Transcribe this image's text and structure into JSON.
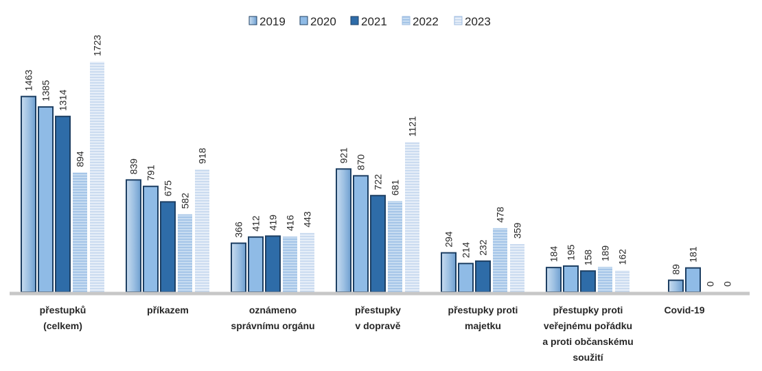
{
  "chart_data": {
    "type": "bar",
    "categories": [
      [
        "přestupků",
        "(celkem)"
      ],
      [
        "příkazem"
      ],
      [
        "oznámeno",
        "správnímu orgánu"
      ],
      [
        "přestupky",
        "v dopravě"
      ],
      [
        "přestupky proti",
        "majetku"
      ],
      [
        "přestupky proti",
        "veřejnému pořádku",
        "a proti občanskému",
        "soužití"
      ],
      [
        "Covid-19"
      ]
    ],
    "series": [
      {
        "name": "2019",
        "values": [
          1463,
          839,
          366,
          921,
          294,
          184,
          89
        ]
      },
      {
        "name": "2020",
        "values": [
          1385,
          791,
          412,
          870,
          214,
          195,
          181
        ]
      },
      {
        "name": "2021",
        "values": [
          1314,
          675,
          419,
          722,
          232,
          158,
          0
        ]
      },
      {
        "name": "2022",
        "values": [
          894,
          582,
          416,
          681,
          478,
          189,
          0
        ]
      },
      {
        "name": "2023",
        "values": [
          1723,
          918,
          443,
          1121,
          359,
          162,
          null
        ]
      }
    ],
    "value_labels": [
      [
        "1463",
        "1385",
        "1314",
        "894",
        "1723"
      ],
      [
        "839",
        "791",
        "675",
        "582",
        "918"
      ],
      [
        "366",
        "412",
        "419",
        "416",
        "443"
      ],
      [
        "921",
        "870",
        "722",
        "681",
        "1121"
      ],
      [
        "294",
        "214",
        "232",
        "478",
        "359"
      ],
      [
        "184",
        "195",
        "158",
        "189",
        "162"
      ],
      [
        "89",
        "181",
        "0",
        "0",
        null
      ]
    ],
    "colors": [
      "#9ec1e3",
      "#8fbbe6",
      "#2e6ca8",
      "#b7d2ee",
      "#d8e5f4"
    ],
    "ylim": [
      0,
      1800
    ],
    "legend_position": "top-center",
    "grid": false,
    "title": "",
    "xlabel": "",
    "ylabel": ""
  }
}
